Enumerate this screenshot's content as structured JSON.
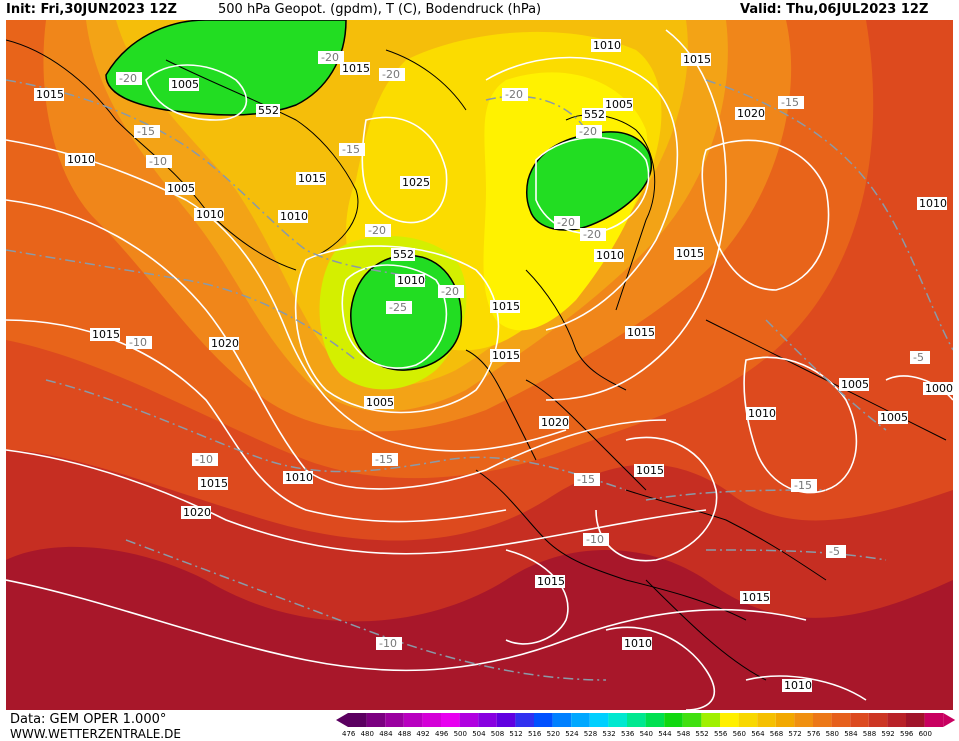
{
  "header": {
    "init": "Init: Fri,30JUN2023 12Z",
    "title": "500 hPa Geopot. (gpdm), T (C), Bodendruck (hPa)",
    "valid": "Valid: Thu,06JUL2023 12Z"
  },
  "footer": {
    "data_source": "Data: GEM OPER 1.000°",
    "website": "WWW.WETTERZENTRALE.DE"
  },
  "colors": {
    "background_deep_red": "#a0102a",
    "orange": "#e8601a",
    "light_orange": "#f0921c",
    "yellow": "#f5c800",
    "bright_yellow": "#fff000",
    "green": "#22dd22",
    "isobar": "#ffffff",
    "coastline": "#000000",
    "isotherm": "#8a9aa8"
  },
  "colorbar": {
    "ticks": [
      "476",
      "480",
      "484",
      "488",
      "492",
      "496",
      "500",
      "504",
      "508",
      "512",
      "516",
      "520",
      "524",
      "528",
      "532",
      "536",
      "540",
      "544",
      "548",
      "552",
      "556",
      "560",
      "564",
      "568",
      "572",
      "576",
      "580",
      "584",
      "588",
      "592",
      "596",
      "600"
    ],
    "colors": [
      "#5a0060",
      "#7a0080",
      "#9a00a0",
      "#b800c0",
      "#d400d8",
      "#e800f0",
      "#b000e0",
      "#8800e0",
      "#6000e0",
      "#3030f0",
      "#0050ff",
      "#0080ff",
      "#00a8ff",
      "#00d0ff",
      "#00e8d0",
      "#00e890",
      "#00e050",
      "#10d810",
      "#40e010",
      "#a0f000",
      "#fff000",
      "#f8d800",
      "#f5c000",
      "#f2a800",
      "#f09010",
      "#ec7818",
      "#e6601c",
      "#dc4a20",
      "#cc3624",
      "#b82228",
      "#a0142a",
      "#c80060"
    ]
  },
  "pressure_labels": [
    "1015",
    "1010",
    "1005",
    "1010",
    "1005",
    "1010",
    "1015",
    "1020",
    "1025",
    "1015",
    "1020",
    "1010",
    "1005",
    "1015",
    "1015",
    "1020",
    "1015",
    "1010",
    "1005",
    "1010",
    "1015",
    "1015",
    "1020",
    "1010",
    "1015",
    "1010",
    "1005",
    "1000",
    "1005",
    "1010",
    "1015",
    "1015",
    "1010",
    "1010",
    "1015",
    "1020",
    "1015",
    "552",
    "552",
    "552"
  ],
  "temperature_labels": [
    "-20",
    "-15",
    "-10",
    "-20",
    "-15",
    "-20",
    "-20",
    "-20",
    "-20",
    "-20",
    "-20",
    "-25",
    "-20",
    "-15",
    "-10",
    "-15",
    "-15",
    "-10",
    "-10",
    "-10",
    "-15",
    "-5",
    "-5",
    "-10"
  ]
}
